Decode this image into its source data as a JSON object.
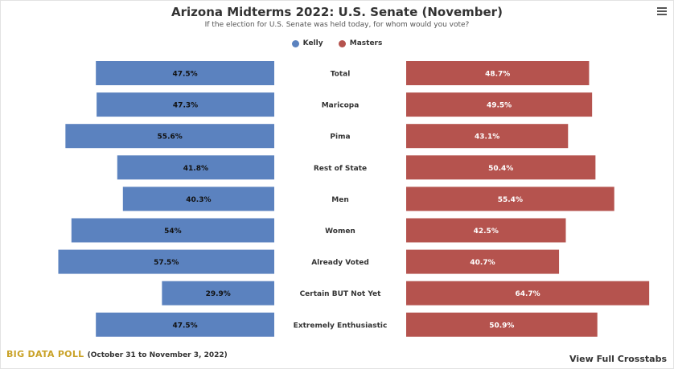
{
  "header": {
    "title": "Arizona Midterms 2022: U.S. Senate (November)",
    "subtitle": "If the election for U.S. Senate was held today, for whom would you vote?",
    "menu_icon": "hamburger-menu-icon"
  },
  "legend": {
    "items": [
      {
        "label": "Kelly",
        "color": "#5b82bf"
      },
      {
        "label": "Masters",
        "color": "#b5534e"
      }
    ]
  },
  "footer": {
    "brand": "BIG DATA POLL",
    "dates": "(October 31 to November 3, 2022)",
    "crosstabs_link": "View Full Crosstabs"
  },
  "chart_data": {
    "type": "bar",
    "orientation": "horizontal-diverging",
    "categories": [
      "Total",
      "Maricopa",
      "Pima",
      "Rest of State",
      "Men",
      "Women",
      "Already Voted",
      "Certain BUT Not Yet",
      "Extremely Enthusiastic"
    ],
    "series": [
      {
        "name": "Kelly",
        "color": "#5b82bf",
        "values": [
          47.5,
          47.3,
          55.6,
          41.8,
          40.3,
          54,
          57.5,
          29.9,
          47.5
        ],
        "labels": [
          "47.5%",
          "47.3%",
          "55.6%",
          "41.8%",
          "40.3%",
          "54%",
          "57.5%",
          "29.9%",
          "47.5%"
        ]
      },
      {
        "name": "Masters",
        "color": "#b5534e",
        "values": [
          48.7,
          49.5,
          43.1,
          50.4,
          55.4,
          42.5,
          40.7,
          64.7,
          50.9
        ],
        "labels": [
          "48.7%",
          "49.5%",
          "43.1%",
          "50.4%",
          "55.4%",
          "42.5%",
          "40.7%",
          "64.7%",
          "50.9%"
        ]
      }
    ],
    "legend_position": "top-center",
    "grid": false
  }
}
